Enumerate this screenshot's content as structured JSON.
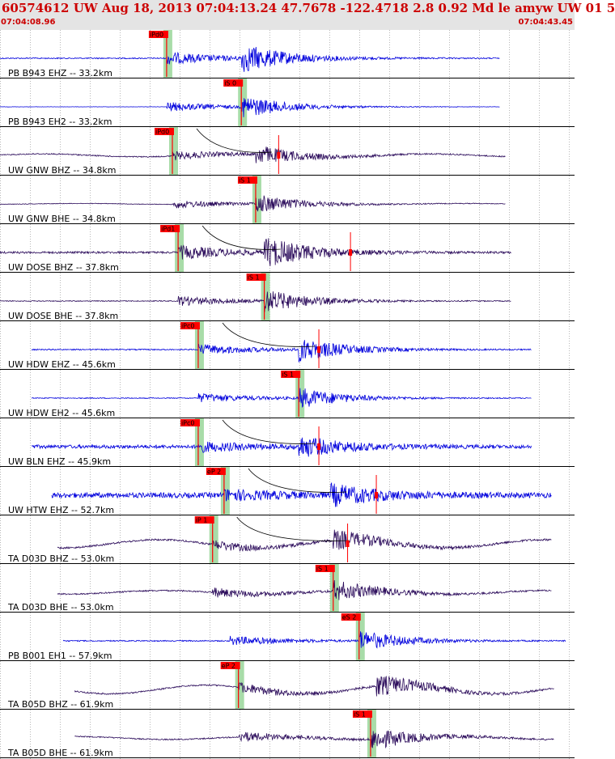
{
  "header": {
    "title": "60574612 UW Aug 18, 2013 07:04:13.24    47.7678 -122.4718  2.8 0.92 Md le amyw UW 01    5",
    "start_time": "07:04:08.96",
    "end_time": "07:04:43.45"
  },
  "colors": {
    "header_bg": "#e4e4e4",
    "header_text": "#cc0000",
    "trace_blue": "#0000dd",
    "trace_purple": "#2a0a5a",
    "pick_flag": "#ff0000",
    "pick_window": "#a8dca8",
    "grid_line": "#000000"
  },
  "chart_data": {
    "type": "line",
    "time_range": [
      "07:04:08.96",
      "07:04:43.45"
    ],
    "grid": true,
    "traces": [
      {
        "label": "PB B943 EHZ -- 33.2km",
        "color": "blue",
        "pick": "iPd0",
        "p_pos": 0.29,
        "s_pos": 0.42,
        "start": 0.0,
        "end": 0.87,
        "noise": 0.04,
        "amp": 0.75,
        "wave": 0.0,
        "curve": false,
        "flag_pos": 0.29,
        "marker2": null
      },
      {
        "label": "PB B943 EH2 -- 33.2km",
        "color": "blue",
        "pick": "iS 0",
        "p_pos": 0.29,
        "s_pos": 0.42,
        "start": 0.0,
        "end": 0.87,
        "noise": 0.01,
        "amp": 0.6,
        "wave": 0.0,
        "curve": false,
        "flag_pos": 0.42,
        "marker2": null
      },
      {
        "label": "UW GNW BHZ -- 34.8km",
        "color": "purple",
        "pick": "iPd0",
        "p_pos": 0.3,
        "s_pos": 0.445,
        "start": 0.0,
        "end": 0.88,
        "noise": 0.04,
        "amp": 0.5,
        "wave": 0.1,
        "curve": true,
        "flag_pos": 0.3,
        "marker2": 0.485
      },
      {
        "label": "UW GNW BHE -- 34.8km",
        "color": "purple",
        "pick": "iS 1",
        "p_pos": 0.3,
        "s_pos": 0.445,
        "start": 0.0,
        "end": 0.88,
        "noise": 0.02,
        "amp": 0.5,
        "wave": 0.03,
        "curve": false,
        "flag_pos": 0.445,
        "marker2": null
      },
      {
        "label": "UW DOSE BHZ -- 37.8km",
        "color": "purple",
        "pick": "iPd1",
        "p_pos": 0.31,
        "s_pos": 0.46,
        "start": 0.0,
        "end": 0.89,
        "noise": 0.07,
        "amp": 0.8,
        "wave": 0.0,
        "curve": true,
        "flag_pos": 0.31,
        "marker2": 0.61
      },
      {
        "label": "UW DOSE BHE -- 37.8km",
        "color": "purple",
        "pick": "iS 1",
        "p_pos": 0.31,
        "s_pos": 0.46,
        "start": 0.0,
        "end": 0.89,
        "noise": 0.03,
        "amp": 0.6,
        "wave": 0.0,
        "curve": false,
        "flag_pos": 0.46,
        "marker2": null
      },
      {
        "label": "UW HDW EHZ -- 45.6km",
        "color": "blue",
        "pick": "iPc0",
        "p_pos": 0.345,
        "s_pos": 0.52,
        "start": 0.055,
        "end": 0.925,
        "noise": 0.04,
        "amp": 0.65,
        "wave": 0.0,
        "curve": true,
        "flag_pos": 0.345,
        "marker2": 0.555
      },
      {
        "label": "UW HDW EH2 -- 45.6km",
        "color": "blue",
        "pick": "iS 1",
        "p_pos": 0.345,
        "s_pos": 0.52,
        "start": 0.055,
        "end": 0.925,
        "noise": 0.03,
        "amp": 0.55,
        "wave": 0.0,
        "curve": false,
        "flag_pos": 0.52,
        "marker2": null
      },
      {
        "label": "UW BLN EHZ -- 45.9km",
        "color": "blue",
        "pick": "iPc0",
        "p_pos": 0.345,
        "s_pos": 0.52,
        "start": 0.055,
        "end": 0.925,
        "noise": 0.12,
        "amp": 0.55,
        "wave": 0.0,
        "curve": true,
        "flag_pos": 0.345,
        "marker2": 0.555
      },
      {
        "label": "UW HTW EHZ -- 52.7km",
        "color": "blue",
        "pick": "eP 2",
        "p_pos": 0.39,
        "s_pos": 0.575,
        "start": 0.09,
        "end": 0.96,
        "noise": 0.18,
        "amp": 0.55,
        "wave": 0.0,
        "curve": true,
        "flag_pos": 0.39,
        "marker2": 0.655
      },
      {
        "label": "TA D03D BHZ -- 53.0km",
        "color": "purple",
        "pick": "iP 1",
        "p_pos": 0.37,
        "s_pos": 0.58,
        "start": 0.1,
        "end": 0.96,
        "noise": 0.06,
        "amp": 0.55,
        "wave": 0.28,
        "curve": true,
        "flag_pos": 0.37,
        "marker2": 0.605
      },
      {
        "label": "TA D03D BHE -- 53.0km",
        "color": "purple",
        "pick": "iS 1",
        "p_pos": 0.37,
        "s_pos": 0.58,
        "start": 0.1,
        "end": 0.96,
        "noise": 0.05,
        "amp": 0.55,
        "wave": 0.12,
        "curve": false,
        "flag_pos": 0.58,
        "marker2": null
      },
      {
        "label": "PB B001 EH1 -- 57.9km",
        "color": "blue",
        "pick": "eS 2",
        "p_pos": 0.4,
        "s_pos": 0.625,
        "start": 0.11,
        "end": 0.985,
        "noise": 0.04,
        "amp": 0.55,
        "wave": 0.0,
        "curve": false,
        "flag_pos": 0.625,
        "marker2": null
      },
      {
        "label": "TA B05D BHZ -- 61.9km",
        "color": "purple",
        "pick": "eP 2",
        "p_pos": 0.415,
        "s_pos": 0.655,
        "start": 0.13,
        "end": 0.965,
        "noise": 0.05,
        "amp": 0.6,
        "wave": 0.3,
        "curve": false,
        "flag_pos": 0.415,
        "marker2": null
      },
      {
        "label": "TA B05D BHE -- 61.9km",
        "color": "purple",
        "pick": "iS 1",
        "p_pos": 0.415,
        "s_pos": 0.645,
        "start": 0.13,
        "end": 0.965,
        "noise": 0.04,
        "amp": 0.6,
        "wave": 0.1,
        "curve": false,
        "flag_pos": 0.645,
        "marker2": null
      }
    ]
  }
}
